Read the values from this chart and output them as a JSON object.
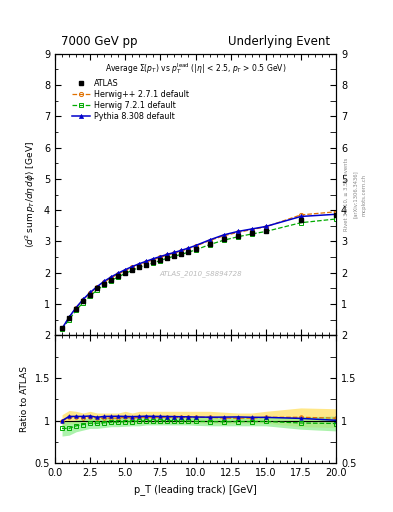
{
  "title_left": "7000 GeV pp",
  "title_right": "Underlying Event",
  "xlabel": "p_T (leading track) [GeV]",
  "ylabel_main": "$\\langle d^2$ sum $p_T/d\\eta d\\phi\\rangle$ [GeV]",
  "ylabel_ratio": "Ratio to ATLAS",
  "watermark": "ATLAS_2010_S8894728",
  "rivet_text": "Rivet 3.1.10, ≥ 3.5M events",
  "arxiv_text": "[arXiv:1306.3436]",
  "mcplots_text": "mcplots.cern.ch",
  "atlas_data_x": [
    0.5,
    1.0,
    1.5,
    2.0,
    2.5,
    3.0,
    3.5,
    4.0,
    4.5,
    5.0,
    5.5,
    6.0,
    6.5,
    7.0,
    7.5,
    8.0,
    8.5,
    9.0,
    9.5,
    10.0,
    11.0,
    12.0,
    13.0,
    14.0,
    15.0,
    17.5,
    20.0
  ],
  "atlas_data_y": [
    0.22,
    0.55,
    0.85,
    1.1,
    1.3,
    1.5,
    1.65,
    1.78,
    1.9,
    2.0,
    2.1,
    2.18,
    2.25,
    2.33,
    2.4,
    2.47,
    2.53,
    2.6,
    2.67,
    2.75,
    2.93,
    3.08,
    3.18,
    3.27,
    3.35,
    3.7,
    3.85
  ],
  "herwig_pp_x": [
    0.5,
    1.0,
    1.5,
    2.0,
    2.5,
    3.0,
    3.5,
    4.0,
    4.5,
    5.0,
    5.5,
    6.0,
    6.5,
    7.0,
    7.5,
    8.0,
    8.5,
    9.0,
    9.5,
    10.0,
    11.0,
    12.0,
    13.0,
    14.0,
    15.0,
    17.5,
    20.0
  ],
  "herwig_pp_y": [
    0.22,
    0.57,
    0.88,
    1.13,
    1.35,
    1.54,
    1.7,
    1.84,
    1.96,
    2.07,
    2.17,
    2.26,
    2.34,
    2.42,
    2.49,
    2.57,
    2.63,
    2.7,
    2.77,
    2.85,
    3.03,
    3.18,
    3.29,
    3.38,
    3.47,
    3.85,
    3.95
  ],
  "herwig72_x": [
    0.5,
    1.0,
    1.5,
    2.0,
    2.5,
    3.0,
    3.5,
    4.0,
    4.5,
    5.0,
    5.5,
    6.0,
    6.5,
    7.0,
    7.5,
    8.0,
    8.5,
    9.0,
    9.5,
    10.0,
    11.0,
    12.0,
    13.0,
    14.0,
    15.0,
    17.5,
    20.0
  ],
  "herwig72_y": [
    0.2,
    0.5,
    0.8,
    1.05,
    1.26,
    1.45,
    1.61,
    1.75,
    1.87,
    1.98,
    2.08,
    2.17,
    2.25,
    2.32,
    2.39,
    2.47,
    2.53,
    2.59,
    2.66,
    2.73,
    2.9,
    3.04,
    3.15,
    3.24,
    3.32,
    3.6,
    3.72
  ],
  "pythia_x": [
    0.5,
    1.0,
    1.5,
    2.0,
    2.5,
    3.0,
    3.5,
    4.0,
    4.5,
    5.0,
    5.5,
    6.0,
    6.5,
    7.0,
    7.5,
    8.0,
    8.5,
    9.0,
    9.5,
    10.0,
    11.0,
    12.0,
    13.0,
    14.0,
    15.0,
    17.5,
    20.0
  ],
  "pythia_y": [
    0.22,
    0.58,
    0.89,
    1.15,
    1.37,
    1.56,
    1.73,
    1.87,
    1.99,
    2.1,
    2.2,
    2.29,
    2.37,
    2.45,
    2.52,
    2.59,
    2.65,
    2.72,
    2.79,
    2.87,
    3.05,
    3.21,
    3.32,
    3.4,
    3.48,
    3.8,
    3.87
  ],
  "herwig_pp_ratio": [
    1.0,
    1.04,
    1.04,
    1.03,
    1.04,
    1.03,
    1.03,
    1.03,
    1.03,
    1.04,
    1.03,
    1.04,
    1.04,
    1.04,
    1.04,
    1.04,
    1.04,
    1.04,
    1.04,
    1.04,
    1.04,
    1.03,
    1.03,
    1.03,
    1.04,
    1.04,
    1.03
  ],
  "herwig_pp_band_lo": [
    0.93,
    0.96,
    0.97,
    0.97,
    0.97,
    0.97,
    0.97,
    0.97,
    0.97,
    0.97,
    0.97,
    0.97,
    0.97,
    0.97,
    0.97,
    0.97,
    0.97,
    0.97,
    0.97,
    0.97,
    0.97,
    0.96,
    0.97,
    0.97,
    0.97,
    0.93,
    0.92
  ],
  "herwig_pp_band_hi": [
    1.07,
    1.12,
    1.11,
    1.09,
    1.11,
    1.09,
    1.09,
    1.09,
    1.09,
    1.11,
    1.09,
    1.11,
    1.11,
    1.11,
    1.11,
    1.11,
    1.11,
    1.11,
    1.11,
    1.11,
    1.11,
    1.1,
    1.09,
    1.09,
    1.11,
    1.15,
    1.14
  ],
  "herwig72_ratio": [
    0.91,
    0.91,
    0.94,
    0.955,
    0.97,
    0.97,
    0.976,
    0.983,
    0.984,
    0.99,
    0.99,
    0.995,
    1.0,
    0.996,
    0.996,
    1.0,
    1.0,
    0.996,
    0.996,
    0.992,
    0.99,
    0.987,
    0.99,
    0.99,
    0.991,
    0.973,
    0.967
  ],
  "herwig72_band_lo": [
    0.82,
    0.83,
    0.87,
    0.89,
    0.91,
    0.91,
    0.92,
    0.93,
    0.93,
    0.935,
    0.94,
    0.94,
    0.95,
    0.95,
    0.95,
    0.95,
    0.95,
    0.95,
    0.95,
    0.945,
    0.94,
    0.94,
    0.94,
    0.94,
    0.94,
    0.9,
    0.88
  ],
  "herwig72_band_hi": [
    1.0,
    0.99,
    1.01,
    1.02,
    1.03,
    1.03,
    1.03,
    1.04,
    1.04,
    1.045,
    1.04,
    1.05,
    1.05,
    1.04,
    1.04,
    1.05,
    1.05,
    1.04,
    1.04,
    1.039,
    1.04,
    1.034,
    1.04,
    1.04,
    1.042,
    1.046,
    1.054
  ],
  "pythia_ratio": [
    1.0,
    1.05,
    1.05,
    1.05,
    1.055,
    1.04,
    1.05,
    1.051,
    1.052,
    1.05,
    1.048,
    1.05,
    1.053,
    1.051,
    1.05,
    1.049,
    1.048,
    1.046,
    1.045,
    1.043,
    1.041,
    1.042,
    1.044,
    1.04,
    1.039,
    1.027,
    1.005
  ],
  "xlim": [
    0,
    20
  ],
  "ylim_main": [
    0,
    9
  ],
  "ylim_ratio": [
    0.5,
    2.0
  ],
  "yticks_main": [
    1,
    2,
    3,
    4,
    5,
    6,
    7,
    8,
    9
  ],
  "yticks_ratio": [
    0.5,
    1.0,
    1.5,
    2.0
  ],
  "color_atlas": "#000000",
  "color_herwig_pp": "#e07000",
  "color_herwig72": "#00aa00",
  "color_pythia": "#0000cc",
  "color_band_herwig_pp": "#ffe060",
  "color_band_herwig72": "#90ee90",
  "atlas_marker": "s",
  "herwig_pp_marker": "o",
  "herwig72_marker": "s",
  "pythia_marker": "^",
  "legend_labels": [
    "ATLAS",
    "Herwig++ 2.7.1 default",
    "Herwig 7.2.1 default",
    "Pythia 8.308 default"
  ]
}
